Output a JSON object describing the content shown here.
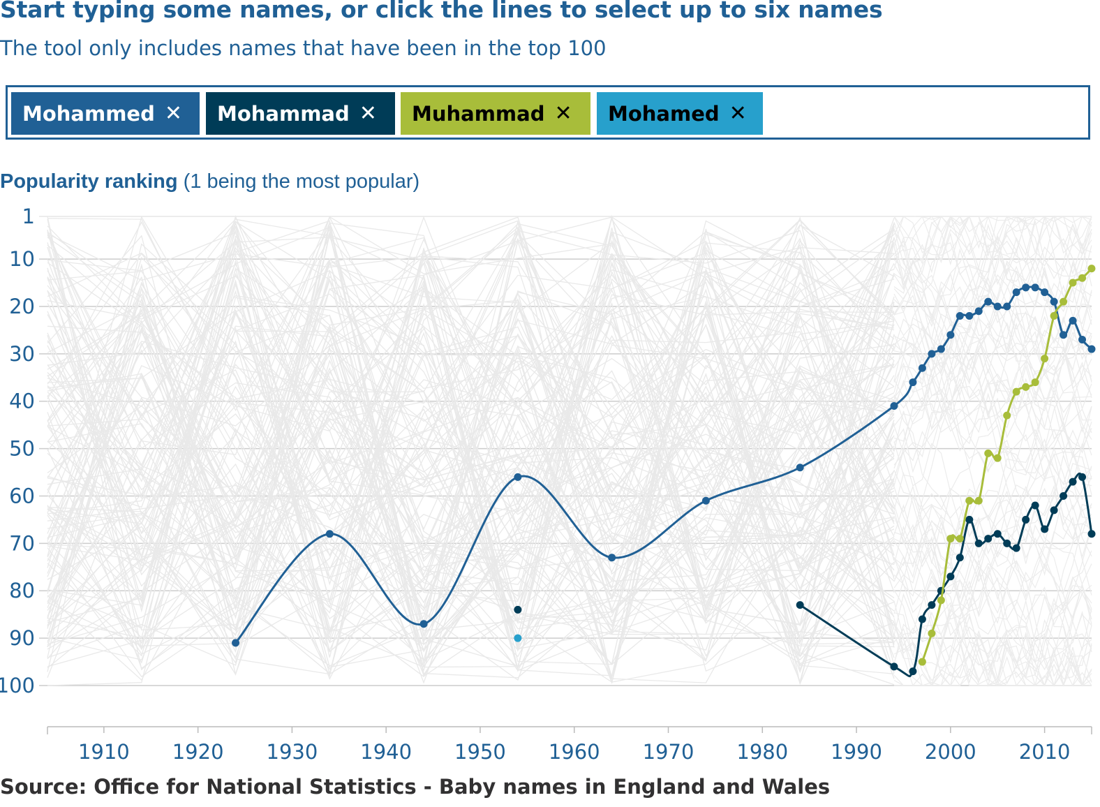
{
  "header": {
    "title": "Start typing some names, or click the lines to select up to six names",
    "subtitle": "The tool only includes names that have been in the top 100"
  },
  "selected_names": [
    {
      "label": "Mohammed",
      "remove_icon": "close-icon",
      "color": "#206095",
      "text_color": "#ffffff"
    },
    {
      "label": "Mohammad",
      "remove_icon": "close-icon",
      "color": "#003c57",
      "text_color": "#ffffff"
    },
    {
      "label": "Muhammad",
      "remove_icon": "close-icon",
      "color": "#a8bd3a",
      "text_color": "#000000"
    },
    {
      "label": "Mohamed",
      "remove_icon": "close-icon",
      "color": "#27a0cc",
      "text_color": "#000000"
    }
  ],
  "axis_title": {
    "bold": "Popularity ranking",
    "rest": " (1 being the most popular)"
  },
  "source": "Source: Office for National Statistics - Baby names in England and Wales",
  "chart_data": {
    "type": "line",
    "x_ticks": [
      "1910",
      "1920",
      "1930",
      "1940",
      "1950",
      "1960",
      "1970",
      "1980",
      "1990",
      "2000",
      "2010"
    ],
    "y_ticks": [
      "1",
      "10",
      "20",
      "30",
      "40",
      "50",
      "60",
      "70",
      "80",
      "90",
      "100"
    ],
    "y_inverted": true,
    "xlim": [
      1904,
      2015
    ],
    "ylim": [
      1,
      100
    ],
    "grid": true,
    "background_lines": "grey lines for all other names that have been in the top 100",
    "series": [
      {
        "name": "Mohammed",
        "color": "#206095",
        "x": [
          1924,
          1934,
          1944,
          1954,
          1964,
          1974,
          1984,
          1994,
          1996,
          1997,
          1998,
          1999,
          2000,
          2001,
          2002,
          2003,
          2004,
          2005,
          2006,
          2007,
          2008,
          2009,
          2010,
          2011,
          2012,
          2013,
          2014,
          2015
        ],
        "y": [
          91,
          68,
          87,
          56,
          73,
          61,
          54,
          41,
          36,
          33,
          30,
          29,
          26,
          22,
          22,
          21,
          19,
          20,
          20,
          17,
          16,
          16,
          17,
          19,
          26,
          23,
          27,
          29
        ]
      },
      {
        "name": "Mohammad",
        "color": "#003c57",
        "x": [
          1954,
          1984,
          1994,
          1996,
          1997,
          1998,
          1999,
          2000,
          2001,
          2002,
          2003,
          2004,
          2005,
          2006,
          2007,
          2008,
          2009,
          2010,
          2011,
          2012,
          2013,
          2014,
          2015
        ],
        "y": [
          84,
          83,
          96,
          97,
          86,
          83,
          80,
          77,
          73,
          65,
          70,
          69,
          68,
          70,
          71,
          65,
          62,
          67,
          63,
          60,
          57,
          56,
          68
        ]
      },
      {
        "name": "Muhammad",
        "color": "#a8bd3a",
        "x": [
          1997,
          1998,
          1999,
          2000,
          2001,
          2002,
          2003,
          2004,
          2005,
          2006,
          2007,
          2008,
          2009,
          2010,
          2011,
          2012,
          2013,
          2014,
          2015
        ],
        "y": [
          95,
          89,
          82,
          69,
          69,
          61,
          61,
          51,
          52,
          43,
          38,
          37,
          36,
          31,
          22,
          19,
          15,
          14,
          12
        ]
      },
      {
        "name": "Mohamed",
        "color": "#27a0cc",
        "x": [
          1954
        ],
        "y": [
          90
        ]
      }
    ]
  }
}
